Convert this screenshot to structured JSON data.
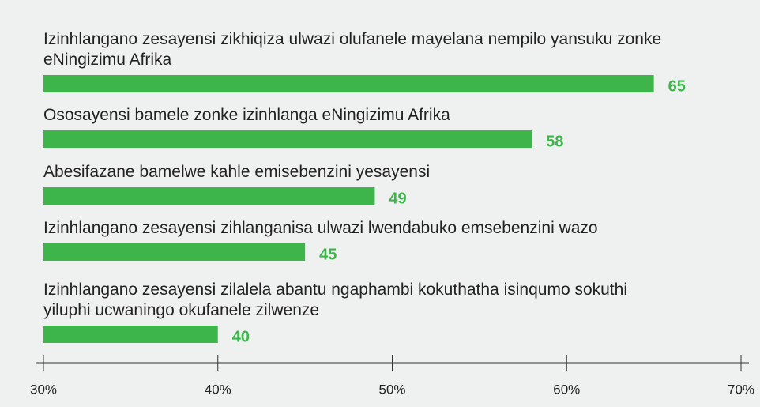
{
  "chart_data": {
    "type": "barh",
    "categories": [
      "Izinhlangano zesayensi zikhiqiza ulwazi olufanele mayelana nempilo yansuku zonke eNingizimu Afrika",
      "Ososayensi bamele zonke izinhlanga eNingizimu Afrika",
      "Abesifazane bamelwe kahle emisebenzini yesayensi",
      "Izinhlangano zesayensi zihlanganisa ulwazi lwendabuko emsebenzini wazo",
      "Izinhlangano zesayensi zilalela abantu ngaphambi kokuthatha isinqumo sokuthi yiluphi ucwaningo okufanele zilwenze"
    ],
    "values": [
      65,
      58,
      49,
      45,
      40
    ],
    "color": "#3db54a",
    "xlim": [
      30,
      70
    ],
    "xticks": [
      {
        "value": 30,
        "label": "30%"
      },
      {
        "value": 40,
        "label": "40%"
      },
      {
        "value": 50,
        "label": "50%"
      },
      {
        "value": 60,
        "label": "60%"
      },
      {
        "value": 70,
        "label": "70%"
      }
    ]
  }
}
